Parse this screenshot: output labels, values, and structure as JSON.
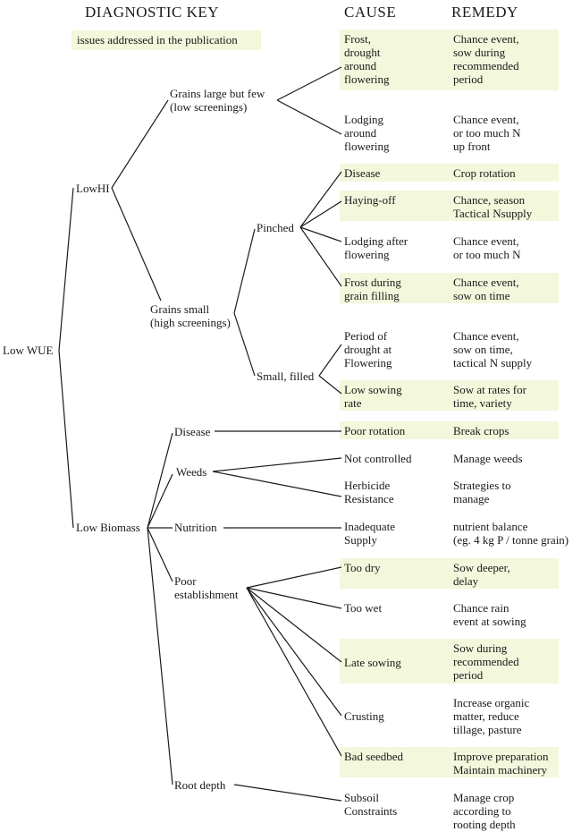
{
  "headers": {
    "key": "DIAGNOSTIC KEY",
    "cause": "CAUSE",
    "remedy": "REMEDY"
  },
  "legend": {
    "label": "issues addressed in the publication",
    "highlight_color": "#f3f7dc"
  },
  "nodes": {
    "root": "Low WUE",
    "low_hi": "LowHI",
    "low_biomass": "Low Biomass",
    "grains_large": "Grains large but few\n(low screenings)",
    "grains_small": "Grains small\n(high screenings)",
    "pinched": "Pinched",
    "small_filled": "Small, filled",
    "disease": "Disease",
    "weeds": "Weeds",
    "nutrition": "Nutrition",
    "poor_establishment": "Poor\nestablishment",
    "root_depth": "Root depth"
  },
  "rows": [
    {
      "cause": "Frost,\ndrought\naround\nflowering",
      "remedy": "Chance event,\nsow during\nrecommended\nperiod",
      "addressed": true
    },
    {
      "cause": "Lodging\naround\nflowering",
      "remedy": "Chance event,\nor too much N\nup front",
      "addressed": false
    },
    {
      "cause": "Disease",
      "remedy": "Crop rotation",
      "addressed": true
    },
    {
      "cause": "Haying-off",
      "remedy": "Chance, season\nTactical Nsupply",
      "addressed": true
    },
    {
      "cause": "Lodging after\nflowering",
      "remedy": "Chance event,\nor too much N",
      "addressed": false
    },
    {
      "cause": "Frost during\ngrain filling",
      "remedy": "Chance event,\nsow on time",
      "addressed": true
    },
    {
      "cause": "Period of\ndrought at\nFlowering",
      "remedy": "Chance event,\nsow on time,\ntactical N supply",
      "addressed": false
    },
    {
      "cause": "Low sowing\nrate",
      "remedy": "Sow at rates for\ntime, variety",
      "addressed": true
    },
    {
      "cause": "Poor rotation",
      "remedy": "Break crops",
      "addressed": true
    },
    {
      "cause": "Not controlled",
      "remedy": "Manage weeds",
      "addressed": false
    },
    {
      "cause": "Herbicide\nResistance",
      "remedy": "Strategies to\nmanage",
      "addressed": false
    },
    {
      "cause": "Inadequate\nSupply",
      "remedy": "nutrient balance\n(eg. 4 kg P / tonne grain)",
      "addressed": false
    },
    {
      "cause": "Too dry",
      "remedy": "Sow deeper,\ndelay",
      "addressed": true
    },
    {
      "cause": "Too wet",
      "remedy": "Chance rain\nevent at sowing",
      "addressed": false
    },
    {
      "cause": "Late sowing",
      "remedy": "Sow during\nrecommended\nperiod",
      "addressed": true
    },
    {
      "cause": "Crusting",
      "remedy": "Increase organic\nmatter, reduce\ntillage, pasture",
      "addressed": false
    },
    {
      "cause": "Bad seedbed",
      "remedy": "Improve preparation\nMaintain machinery",
      "addressed": true
    },
    {
      "cause": "Subsoil\nConstraints",
      "remedy": "Manage crop\naccording to\nrooting depth",
      "addressed": false
    }
  ]
}
